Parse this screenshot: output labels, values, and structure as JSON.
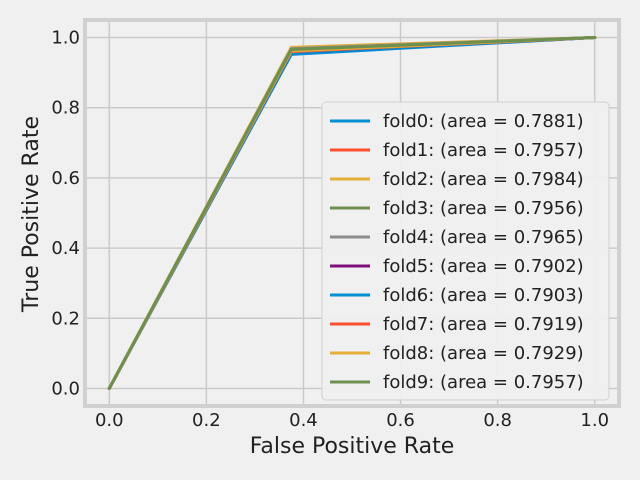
{
  "chart_data": {
    "type": "line",
    "xlabel": "False Positive Rate",
    "ylabel": "True Positive Rate",
    "xlim": [
      -0.05,
      1.05
    ],
    "ylim": [
      -0.05,
      1.05
    ],
    "xticks": [
      0.0,
      0.2,
      0.4,
      0.6,
      0.8,
      1.0
    ],
    "yticks": [
      0.0,
      0.2,
      0.4,
      0.6,
      0.8,
      1.0
    ],
    "xtick_labels": [
      "0.0",
      "0.2",
      "0.4",
      "0.6",
      "0.8",
      "1.0"
    ],
    "ytick_labels": [
      "0.0",
      "0.2",
      "0.4",
      "0.6",
      "0.8",
      "1.0"
    ],
    "grid": true,
    "legend_position": "center-right",
    "series": [
      {
        "name": "fold0: (area = 0.7881)",
        "color": "#008fd5",
        "x": [
          0.0,
          0.375,
          1.0
        ],
        "y": [
          0.0,
          0.952,
          1.0
        ]
      },
      {
        "name": "fold1: (area = 0.7957)",
        "color": "#fc4f30",
        "x": [
          0.0,
          0.375,
          1.0
        ],
        "y": [
          0.0,
          0.966,
          1.0
        ]
      },
      {
        "name": "fold2: (area = 0.7984)",
        "color": "#e5ae38",
        "x": [
          0.0,
          0.375,
          1.0
        ],
        "y": [
          0.0,
          0.972,
          1.0
        ]
      },
      {
        "name": "fold3: (area = 0.7956)",
        "color": "#6d904f",
        "x": [
          0.0,
          0.375,
          1.0
        ],
        "y": [
          0.0,
          0.966,
          1.0
        ]
      },
      {
        "name": "fold4: (area = 0.7965)",
        "color": "#8b8b8b",
        "x": [
          0.0,
          0.375,
          1.0
        ],
        "y": [
          0.0,
          0.968,
          1.0
        ]
      },
      {
        "name": "fold5: (area = 0.7902)",
        "color": "#810f7c",
        "x": [
          0.0,
          0.375,
          1.0
        ],
        "y": [
          0.0,
          0.957,
          1.0
        ]
      },
      {
        "name": "fold6: (area = 0.7903)",
        "color": "#008fd5",
        "x": [
          0.0,
          0.375,
          1.0
        ],
        "y": [
          0.0,
          0.957,
          1.0
        ]
      },
      {
        "name": "fold7: (area = 0.7919)",
        "color": "#fc4f30",
        "x": [
          0.0,
          0.375,
          1.0
        ],
        "y": [
          0.0,
          0.96,
          1.0
        ]
      },
      {
        "name": "fold8: (area = 0.7929)",
        "color": "#e5ae38",
        "x": [
          0.0,
          0.375,
          1.0
        ],
        "y": [
          0.0,
          0.962,
          1.0
        ]
      },
      {
        "name": "fold9: (area = 0.7957)",
        "color": "#6d904f",
        "x": [
          0.0,
          0.375,
          1.0
        ],
        "y": [
          0.0,
          0.966,
          1.0
        ]
      }
    ]
  },
  "colors": {
    "figure_background": "#f0f0f0",
    "axes_background": "#f0f0f0",
    "axes_frame": "#d0d0d0",
    "grid": "#cbcbcb",
    "text": "#222222"
  }
}
